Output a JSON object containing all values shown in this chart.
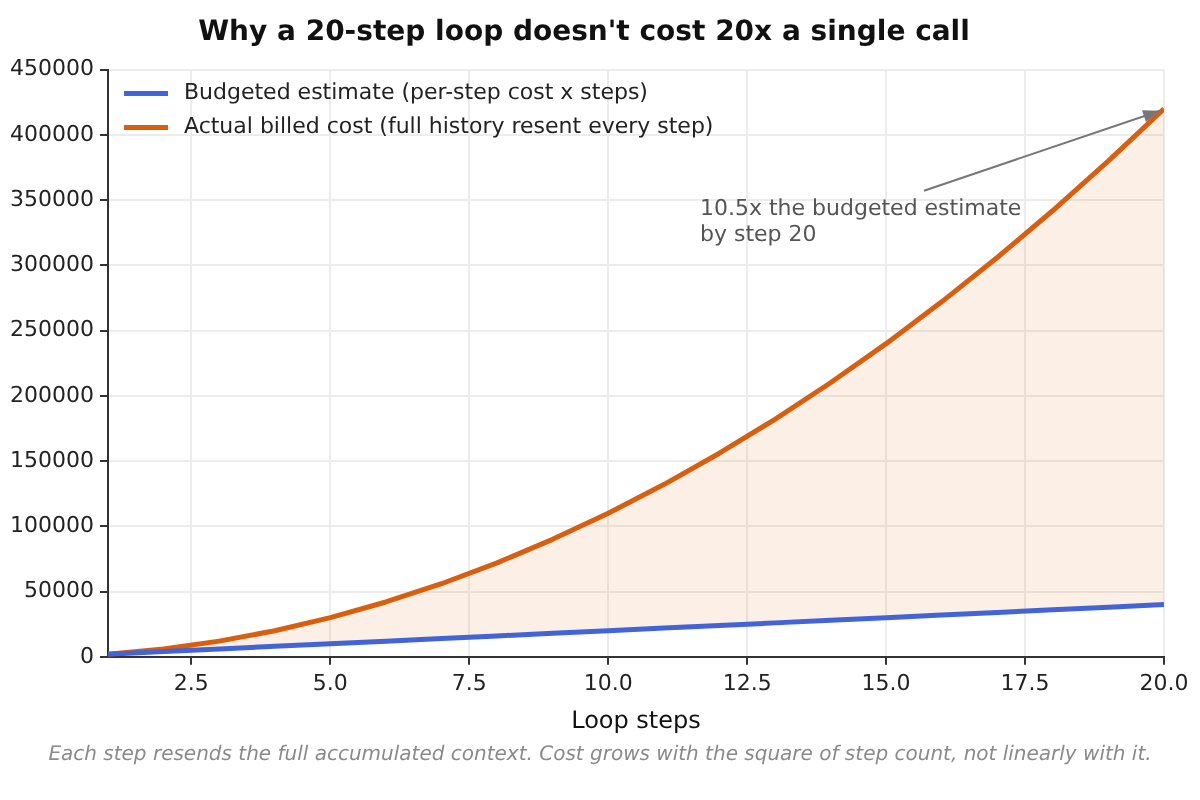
{
  "chart_data": {
    "type": "line",
    "title": "Why a 20-step loop doesn't cost 20x a single call",
    "xlabel": "Loop steps",
    "x": [
      1,
      2,
      3,
      4,
      5,
      6,
      7,
      8,
      9,
      10,
      11,
      12,
      13,
      14,
      15,
      16,
      17,
      18,
      19,
      20
    ],
    "series": [
      {
        "name": "Budgeted estimate (per-step cost x steps)",
        "color": "#4363d8",
        "values": [
          2000,
          4000,
          6000,
          8000,
          10000,
          12000,
          14000,
          16000,
          18000,
          20000,
          22000,
          24000,
          26000,
          28000,
          30000,
          32000,
          34000,
          36000,
          38000,
          40000
        ]
      },
      {
        "name": "Actual billed cost (full history resent every step)",
        "color": "#d95f0e",
        "values": [
          2000,
          6000,
          12000,
          20000,
          30000,
          42000,
          56000,
          72000,
          90000,
          110000,
          132000,
          156000,
          182000,
          210000,
          240000,
          272000,
          306000,
          342000,
          380000,
          420000
        ],
        "lower": [
          2000,
          4000,
          6000,
          8000,
          10000,
          12000,
          14000,
          16000,
          18000,
          20000,
          22000,
          24000,
          26000,
          28000,
          30000,
          32000,
          34000,
          36000,
          38000,
          40000
        ],
        "upper": [
          2000,
          6000,
          12000,
          20000,
          30000,
          42000,
          56000,
          72000,
          90000,
          110000,
          132000,
          156000,
          182000,
          210000,
          240000,
          272000,
          306000,
          342000,
          380000,
          420000
        ]
      }
    ],
    "xlim": [
      1,
      20
    ],
    "xticks": [
      2.5,
      {
        "value": 5,
        "label": "5.0"
      },
      7.5,
      {
        "value": 10,
        "label": "10.0"
      },
      12.5,
      {
        "value": 15,
        "label": "15.0"
      },
      17.5,
      {
        "value": 20,
        "label": "20.0"
      }
    ],
    "ylim": [
      0,
      450000
    ],
    "yticks": [
      0,
      50000,
      100000,
      150000,
      200000,
      250000,
      300000,
      350000,
      400000,
      450000
    ],
    "grid": true,
    "legend": "top left",
    "marker": "none",
    "line_style": "solid",
    "annotations": [
      {
        "text": "10.5x the budgeted estimate\nby step 20",
        "x": 20,
        "y": 420000
      },
      "Each step resends the full accumulated context. Cost grows with the square of step count, not linearly with it."
    ]
  }
}
